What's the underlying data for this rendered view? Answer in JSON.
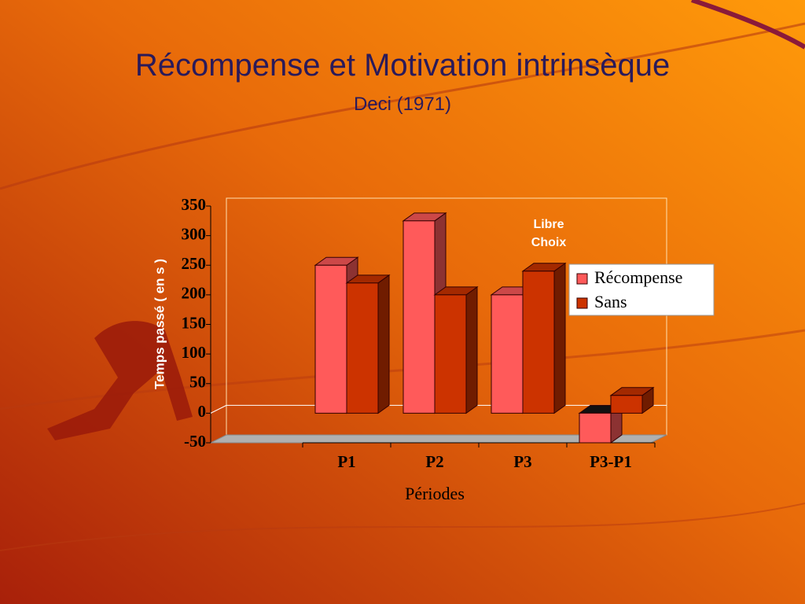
{
  "chart_data": {
    "type": "bar3d",
    "title": "Récompense et Motivation intrinsèque",
    "subtitle": "Deci (1971)",
    "y_label": "Temps passé ( en s )",
    "x_label": "Périodes",
    "annotation": "Libre Choix",
    "categories": [
      "P1",
      "P2",
      "P3",
      "P3-P1"
    ],
    "series": [
      {
        "name": "Récompense",
        "color": "#ff5a5a",
        "values": [
          250,
          325,
          200,
          -50
        ]
      },
      {
        "name": "Sans",
        "color": "#cc3300",
        "values": [
          220,
          200,
          240,
          30
        ]
      }
    ],
    "ylim": [
      -50,
      350
    ],
    "yticks": [
      -50,
      0,
      50,
      100,
      150,
      200,
      250,
      300,
      350
    ]
  }
}
